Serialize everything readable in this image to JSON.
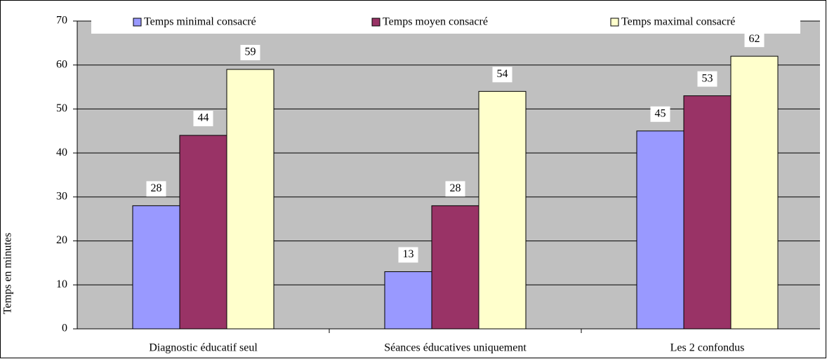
{
  "chart_data": {
    "type": "bar",
    "y_label": "Temps en minutes",
    "categories": [
      "Diagnostic éducatif seul",
      "Séances éducatives uniquement",
      "Les 2 confondus"
    ],
    "series": [
      {
        "name": "Temps minimal consacré",
        "color": "#9999ff",
        "values": [
          28,
          13,
          45
        ]
      },
      {
        "name": "Temps moyen consacré",
        "color": "#993366",
        "values": [
          44,
          28,
          53
        ]
      },
      {
        "name": "Temps maximal consacré",
        "color": "#ffffcc",
        "values": [
          59,
          54,
          62
        ]
      }
    ],
    "ylim": [
      0,
      70
    ],
    "yticks": [
      0,
      10,
      20,
      30,
      40,
      50,
      60,
      70
    ],
    "grid": true,
    "legend": "top"
  }
}
